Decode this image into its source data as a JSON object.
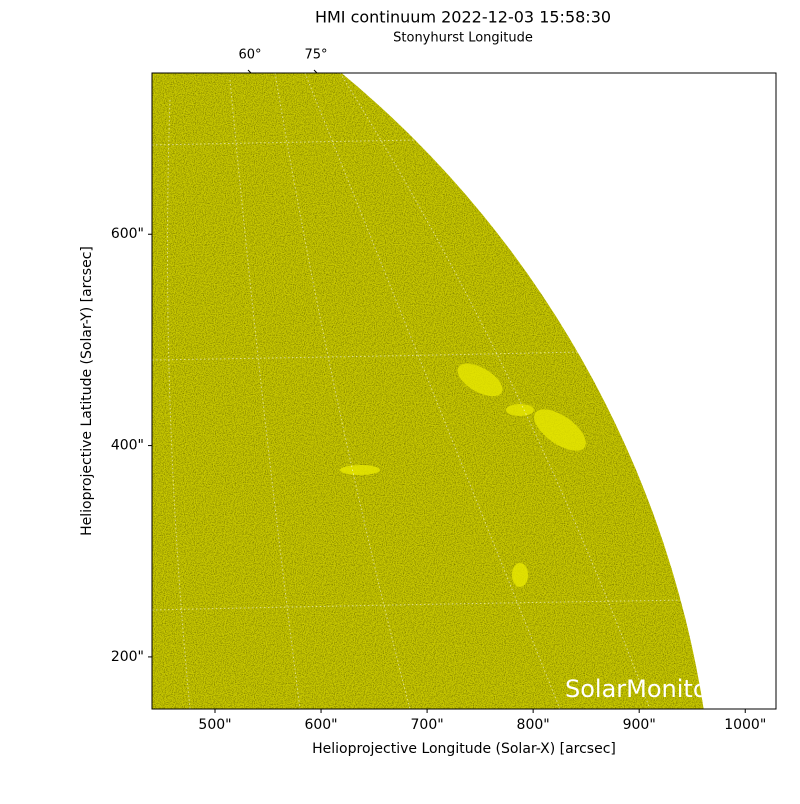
{
  "chart_data": {
    "type": "image",
    "title": "HMI continuum 2022-12-03 15:58:30",
    "xlabel": "Helioprojective Longitude (Solar-X) [arcsec]",
    "ylabel": "Helioprojective Latitude (Solar-Y) [arcsec]",
    "top_axis_label": "Stonyhurst Longitude",
    "top_ticks": [
      {
        "value": 60,
        "label": "60°"
      },
      {
        "value": 75,
        "label": "75°"
      }
    ],
    "watermark": "SolarMonitor",
    "color": "#c8c800",
    "xlim": [
      440.6,
      1029
    ],
    "ylim": [
      150.7,
      752.6
    ],
    "xticks": [
      {
        "value": 500,
        "label": "500\""
      },
      {
        "value": 600,
        "label": "600\""
      },
      {
        "value": 700,
        "label": "700\""
      },
      {
        "value": 800,
        "label": "800\""
      },
      {
        "value": 900,
        "label": "900\""
      },
      {
        "value": 1000,
        "label": "1000\""
      }
    ],
    "yticks": [
      {
        "value": 200,
        "label": "200\""
      },
      {
        "value": 400,
        "label": "400\""
      },
      {
        "value": 600,
        "label": "600\""
      }
    ]
  }
}
